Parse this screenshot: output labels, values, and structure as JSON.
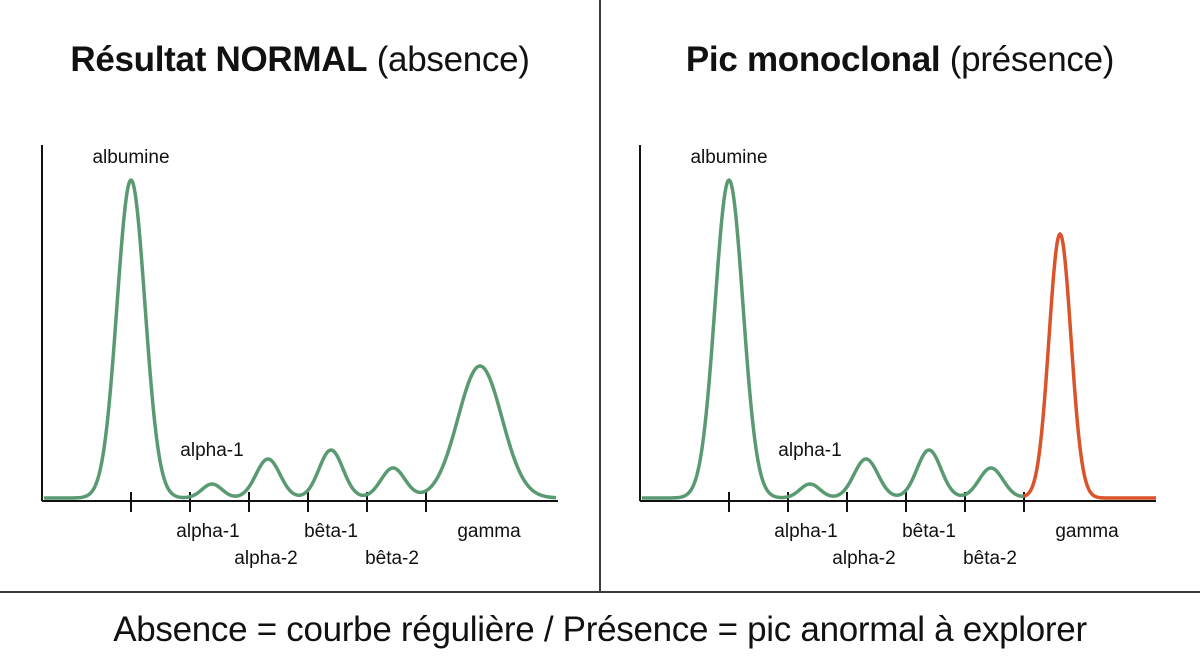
{
  "colors": {
    "normal_curve": "#5a9a72",
    "monoclonal_peak": "#d9542a",
    "axis": "#111111"
  },
  "caption": "Absence = courbe régulière / Présence = pic anormal à explorer",
  "panels": [
    {
      "id": "left",
      "title_bold": "Résultat NORMAL",
      "title_rest": "(absence)",
      "peak_labels": {
        "albumine": "albumine",
        "alpha1": "alpha-1"
      },
      "zones": [
        "alpha-1",
        "alpha-2",
        "bêta-1",
        "bêta-2",
        "gamma"
      ],
      "monoclonal": false
    },
    {
      "id": "right",
      "title_bold": "Pic monoclonal",
      "title_rest": "(présence)",
      "peak_labels": {
        "albumine": "albumine",
        "alpha1": "alpha-1"
      },
      "zones": [
        "alpha-1",
        "alpha-2",
        "bêta-1",
        "bêta-2",
        "gamma"
      ],
      "monoclonal": true
    }
  ]
}
